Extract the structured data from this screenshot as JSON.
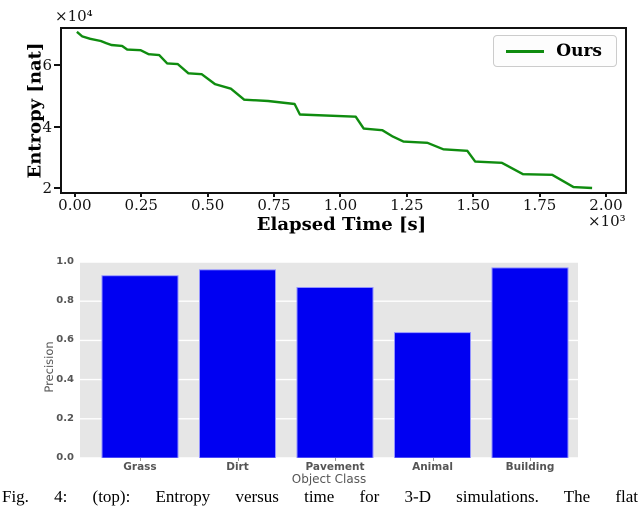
{
  "caption": "Fig. 4: (top): Entropy versus time for 3-D simulations. The flat",
  "colors": {
    "line_green": "#0f8c0f",
    "bar_blue": "#0000f2",
    "bar_edge": "#9393ff",
    "panel_gray": "#e6e6e6",
    "grid_white": "#ffffff",
    "axis_text_gray": "#555555",
    "frame_black": "#111111"
  },
  "chart_data": [
    {
      "type": "line",
      "title": "",
      "xlabel": "Elapsed Time [s]",
      "ylabel": "Entropy [nat]",
      "x_offset_label": "×10³",
      "y_offset_label": "×10⁴",
      "legend": [
        "Ours"
      ],
      "legend_position": "upper right",
      "line_color": "#0f8c0f",
      "grid": false,
      "xlim": [
        -0.056,
        2.064
      ],
      "ylim": [
        1.94,
        7.24
      ],
      "xtick_values": [
        0.0,
        0.25,
        0.5,
        0.75,
        1.0,
        1.25,
        1.5,
        1.75,
        2.0
      ],
      "xtick_labels": [
        "0.00",
        "0.25",
        "0.50",
        "0.75",
        "1.00",
        "1.25",
        "1.50",
        "1.75",
        "2.00"
      ],
      "ytick_values": [
        2,
        4,
        6
      ],
      "ytick_labels": [
        "2",
        "4",
        "6"
      ],
      "x": [
        0.0,
        0.02,
        0.05,
        0.09,
        0.11,
        0.13,
        0.17,
        0.19,
        0.24,
        0.27,
        0.31,
        0.34,
        0.38,
        0.42,
        0.47,
        0.52,
        0.58,
        0.63,
        0.72,
        0.82,
        0.84,
        1.05,
        1.08,
        1.15,
        1.19,
        1.23,
        1.32,
        1.38,
        1.47,
        1.5,
        1.6,
        1.68,
        1.79,
        1.87,
        1.94
      ],
      "y": [
        7.15,
        7.0,
        6.92,
        6.85,
        6.78,
        6.72,
        6.69,
        6.57,
        6.55,
        6.42,
        6.39,
        6.12,
        6.1,
        5.8,
        5.77,
        5.45,
        5.3,
        4.94,
        4.9,
        4.8,
        4.46,
        4.39,
        4.0,
        3.95,
        3.74,
        3.58,
        3.54,
        3.33,
        3.28,
        2.93,
        2.89,
        2.52,
        2.5,
        2.1,
        2.07
      ]
    },
    {
      "type": "bar",
      "title": "",
      "xlabel": "Object Class",
      "ylabel": "Precision",
      "categories": [
        "Grass",
        "Dirt",
        "Pavement",
        "Animal",
        "Building"
      ],
      "values": [
        0.93,
        0.96,
        0.87,
        0.64,
        0.97
      ],
      "ylim": [
        0.0,
        1.0
      ],
      "ytick_values": [
        0.0,
        0.2,
        0.4,
        0.6,
        0.8,
        1.0
      ],
      "ytick_labels": [
        "0.0",
        "0.2",
        "0.4",
        "0.6",
        "0.8",
        "1.0"
      ],
      "bar_color": "#0000f2",
      "grid": true,
      "legend_position": "none"
    }
  ]
}
